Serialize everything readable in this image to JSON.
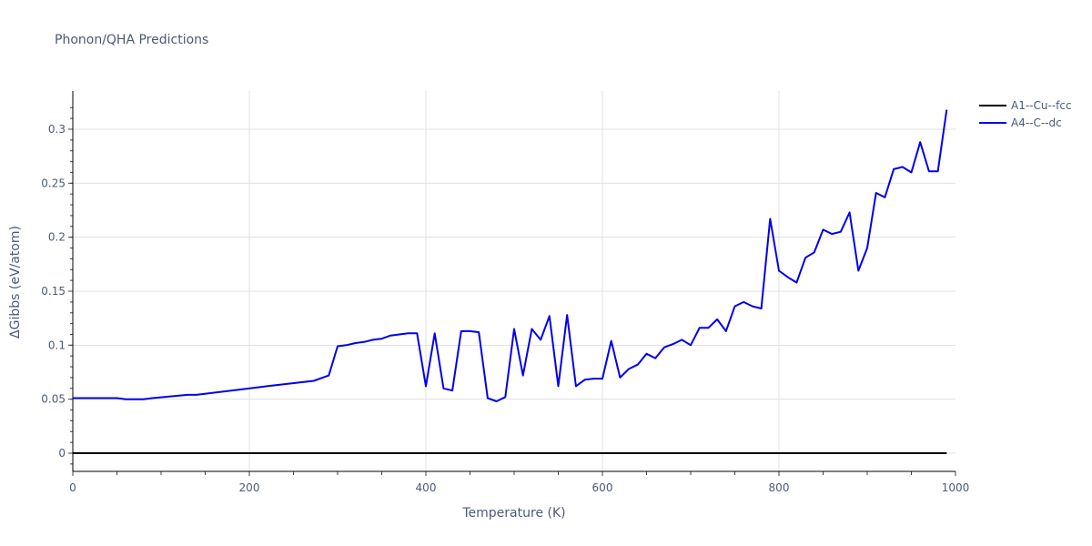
{
  "title": "Phonon/QHA Predictions",
  "legend": [
    {
      "label": "A1--Cu--fcc",
      "color": "#000000"
    },
    {
      "label": "A4--C--dc",
      "color": "#0000ee"
    }
  ],
  "axes": {
    "x": {
      "title": "Temperature (K)",
      "ticks": [
        "0",
        "200",
        "400",
        "600",
        "800",
        "1000"
      ]
    },
    "y": {
      "title": "ΔGibbs (eV/atom)",
      "ticks": [
        "0",
        "0.05",
        "0.1",
        "0.15",
        "0.2",
        "0.25",
        "0.3"
      ]
    }
  },
  "chart_data": {
    "type": "line",
    "title": "Phonon/QHA Predictions",
    "xlabel": "Temperature (K)",
    "ylabel": "ΔGibbs (eV/atom)",
    "xlim": [
      0,
      1000
    ],
    "ylim": [
      -0.018,
      0.335
    ],
    "grid": true,
    "legend_position": "right-top",
    "series": [
      {
        "name": "A1--Cu--fcc",
        "color": "#000000",
        "x": [
          0,
          990
        ],
        "y": [
          0,
          0
        ]
      },
      {
        "name": "A4--C--dc",
        "color": "#0000ee",
        "x": [
          0,
          50,
          60,
          80,
          90,
          130,
          140,
          210,
          220,
          273,
          290,
          300,
          310,
          320,
          330,
          340,
          350,
          360,
          370,
          380,
          390,
          400,
          410,
          420,
          430,
          440,
          450,
          460,
          470,
          480,
          490,
          500,
          510,
          520,
          530,
          540,
          550,
          560,
          570,
          580,
          590,
          600,
          610,
          620,
          630,
          640,
          650,
          660,
          670,
          680,
          690,
          700,
          710,
          720,
          730,
          740,
          750,
          760,
          770,
          780,
          790,
          800,
          810,
          820,
          830,
          840,
          850,
          860,
          870,
          880,
          890,
          900,
          910,
          920,
          930,
          940,
          950,
          960,
          970,
          980,
          990
        ],
        "y": [
          0.051,
          0.051,
          0.05,
          0.05,
          0.051,
          0.054,
          0.054,
          0.061,
          0.062,
          0.067,
          0.072,
          0.099,
          0.1,
          0.102,
          0.103,
          0.105,
          0.106,
          0.109,
          0.11,
          0.111,
          0.111,
          0.062,
          0.111,
          0.06,
          0.058,
          0.113,
          0.113,
          0.112,
          0.051,
          0.048,
          0.052,
          0.115,
          0.072,
          0.115,
          0.105,
          0.127,
          0.062,
          0.128,
          0.062,
          0.068,
          0.069,
          0.069,
          0.104,
          0.07,
          0.078,
          0.082,
          0.092,
          0.088,
          0.098,
          0.101,
          0.105,
          0.1,
          0.116,
          0.116,
          0.124,
          0.113,
          0.136,
          0.14,
          0.136,
          0.134,
          0.217,
          0.169,
          0.163,
          0.158,
          0.181,
          0.186,
          0.207,
          0.203,
          0.205,
          0.223,
          0.169,
          0.19,
          0.241,
          0.237,
          0.263,
          0.265,
          0.26,
          0.288,
          0.261,
          0.261,
          0.318
        ]
      }
    ]
  }
}
